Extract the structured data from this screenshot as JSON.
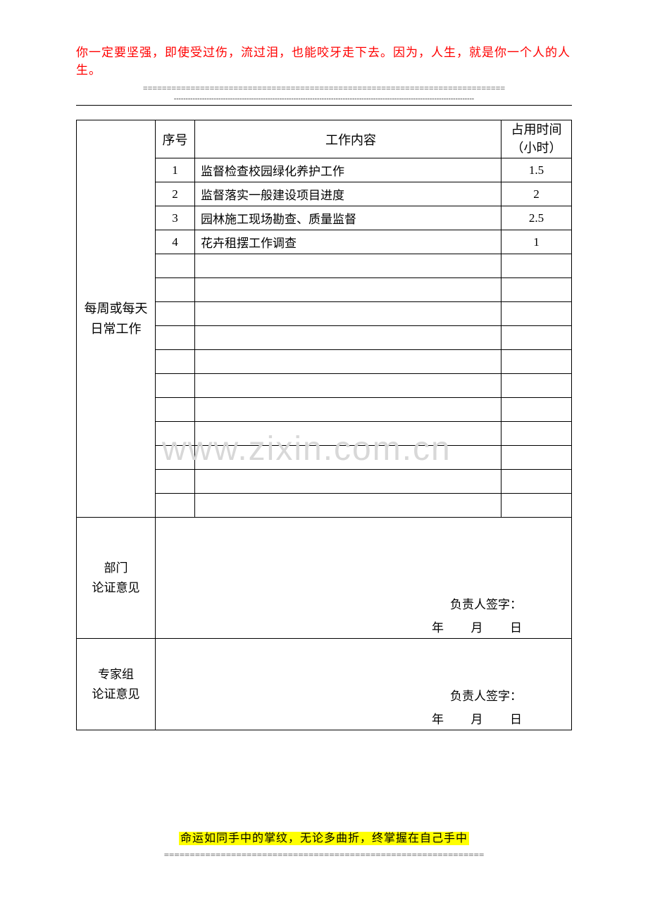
{
  "header": {
    "quote": "你一定要坚强，即使受过伤，流过泪，也能咬牙走下去。因为，人生，就是你一个人的人生。",
    "divider1": "============================================================================",
    "divider2": "--------------------------------------------------------------------------------------------------------------------------------"
  },
  "table": {
    "row_label": "每周或每天\n日常工作",
    "headers": {
      "seq": "序号",
      "content": "工作内容",
      "time_line1": "占用时间",
      "time_line2": "（小时）"
    },
    "rows": [
      {
        "seq": "1",
        "content": "监督检查校园绿化养护工作",
        "time": "1.5"
      },
      {
        "seq": "2",
        "content": "监督落实一般建设项目进度",
        "time": "2"
      },
      {
        "seq": "3",
        "content": "园林施工现场勘查、质量监督",
        "time": "2.5"
      },
      {
        "seq": "4",
        "content": "花卉租摆工作调查",
        "time": "1"
      }
    ],
    "empty_rows": 11,
    "dept_label": "部门\n论证意见",
    "expert_label": "专家组\n论证意见",
    "signature": "负责人签字：",
    "date_label": "年    月    日"
  },
  "watermark": "www.zixin.com.cn",
  "footer": {
    "quote": "命运如同手中的掌纹，无论多曲折，终掌握在自己手中",
    "divider": "=============================================================="
  }
}
